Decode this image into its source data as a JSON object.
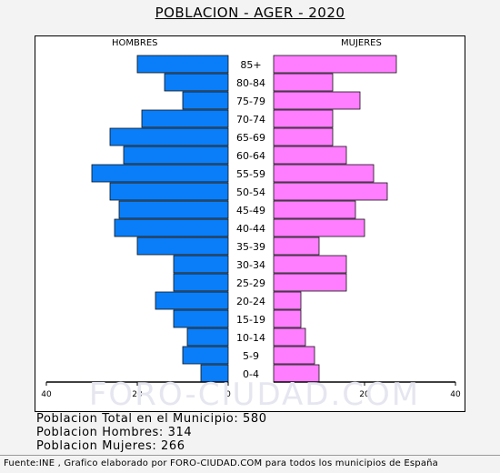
{
  "title": "POBLACION - AGER - 2020",
  "watermark": "FORO-CIUDAD.COM",
  "summary": {
    "total": "Poblacion Total en el Municipio: 580",
    "men": "Poblacion Hombres: 314",
    "women": "Poblacion Mujeres: 266"
  },
  "footer": "Fuente:INE , Grafico elaborado por FORO-CIUDAD.COM para todos los municipios de España",
  "chart_data": {
    "type": "bar",
    "orientation": "horizontal-pyramid",
    "left_label": "HOMBRES",
    "right_label": "MUJERES",
    "categories": [
      "85+",
      "80-84",
      "75-79",
      "70-74",
      "65-69",
      "60-64",
      "55-59",
      "50-54",
      "45-49",
      "40-44",
      "35-39",
      "30-34",
      "25-29",
      "20-24",
      "15-19",
      "10-14",
      "5-9",
      "0-4"
    ],
    "series": [
      {
        "name": "HOMBRES",
        "color": "#0a7ef8",
        "values": [
          20,
          14,
          10,
          19,
          26,
          23,
          30,
          26,
          24,
          25,
          20,
          12,
          12,
          16,
          12,
          9,
          10,
          6
        ]
      },
      {
        "name": "MUJERES",
        "color": "#ff7dff",
        "values": [
          27,
          13,
          19,
          13,
          13,
          16,
          22,
          25,
          18,
          20,
          10,
          16,
          16,
          6,
          6,
          7,
          9,
          10
        ]
      }
    ],
    "x_ticks_left": [
      "40",
      "20",
      "0"
    ],
    "x_ticks_right": [
      "20",
      "40"
    ],
    "xlim": [
      -40,
      40
    ]
  }
}
